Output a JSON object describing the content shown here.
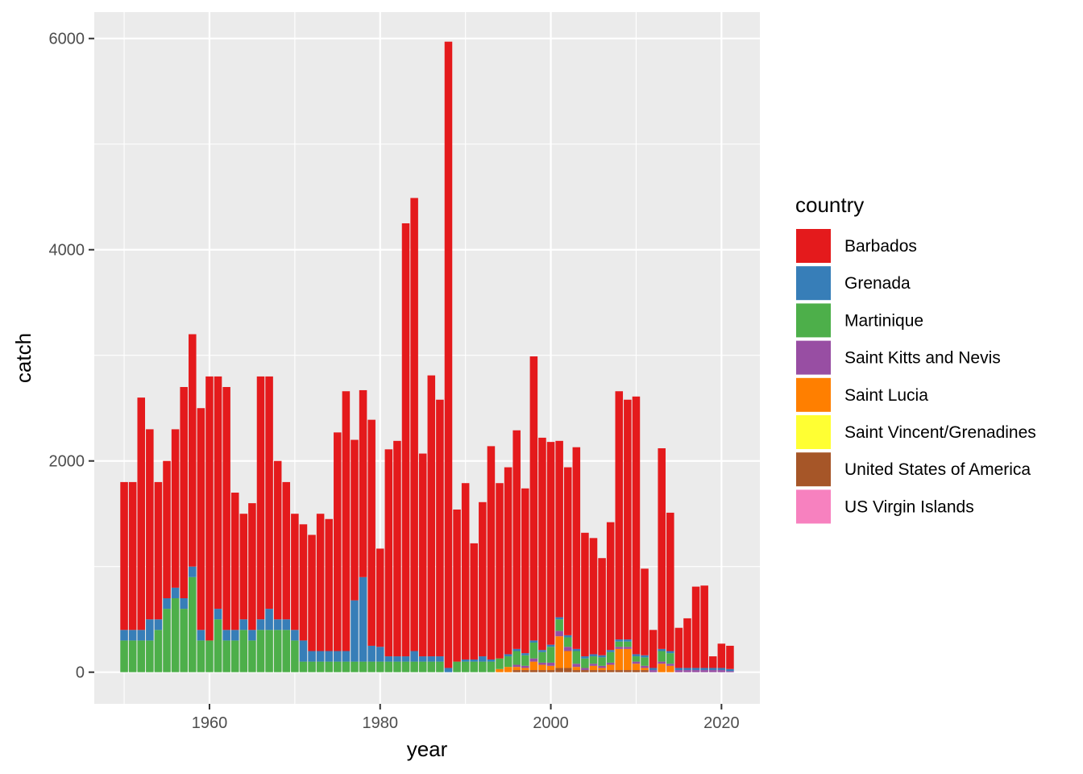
{
  "chart_data": {
    "type": "bar",
    "stacked": true,
    "xlabel": "year",
    "ylabel": "catch",
    "xlim": [
      1946.5,
      2024.5
    ],
    "ylim": [
      -300,
      6250
    ],
    "x_ticks": [
      1960,
      1980,
      2000,
      2020
    ],
    "y_ticks": [
      0,
      2000,
      4000,
      6000
    ],
    "grid": true,
    "legend_title": "country",
    "legend_position": "right",
    "series": [
      {
        "name": "Barbados",
        "color": "#E41A1C"
      },
      {
        "name": "Grenada",
        "color": "#377EB8"
      },
      {
        "name": "Martinique",
        "color": "#4DAF4A"
      },
      {
        "name": "Saint Kitts and Nevis",
        "color": "#984EA3"
      },
      {
        "name": "Saint Lucia",
        "color": "#FF7F00"
      },
      {
        "name": "Saint Vincent/Grenadines",
        "color": "#FFFF33"
      },
      {
        "name": "United States of America",
        "color": "#A65628"
      },
      {
        "name": "US Virgin Islands",
        "color": "#F781BF"
      }
    ],
    "stack_order": [
      "United States of America",
      "Saint Lucia",
      "Saint Kitts and Nevis",
      "Martinique",
      "Grenada",
      "Barbados"
    ],
    "years": [
      1950,
      1951,
      1952,
      1953,
      1954,
      1955,
      1956,
      1957,
      1958,
      1959,
      1960,
      1961,
      1962,
      1963,
      1964,
      1965,
      1966,
      1967,
      1968,
      1969,
      1970,
      1971,
      1972,
      1973,
      1974,
      1975,
      1976,
      1977,
      1978,
      1979,
      1980,
      1981,
      1982,
      1983,
      1984,
      1985,
      1986,
      1987,
      1988,
      1989,
      1990,
      1991,
      1992,
      1993,
      1994,
      1995,
      1996,
      1997,
      1998,
      1999,
      2000,
      2001,
      2002,
      2003,
      2004,
      2005,
      2006,
      2007,
      2008,
      2009,
      2010,
      2011,
      2012,
      2013,
      2014,
      2015,
      2016,
      2017,
      2018,
      2019,
      2020,
      2021
    ],
    "values": {
      "Barbados": [
        1400,
        1400,
        2200,
        1800,
        1300,
        1300,
        1500,
        2000,
        2200,
        2100,
        2500,
        2200,
        2300,
        1300,
        1000,
        1200,
        2300,
        2200,
        1500,
        1300,
        1100,
        1100,
        1100,
        1300,
        1250,
        2070,
        2460,
        1520,
        1770,
        2140,
        930,
        1960,
        2040,
        4100,
        4290,
        1920,
        2660,
        2430,
        5930,
        1440,
        1670,
        1100,
        1460,
        2020,
        1660,
        1770,
        2070,
        1560,
        2690,
        2010,
        1920,
        1670,
        1590,
        1910,
        1170,
        1100,
        920,
        1210,
        2350,
        2270,
        2440,
        820,
        360,
        1900,
        1310,
        380,
        470,
        770,
        780,
        110,
        230,
        220
      ],
      "Grenada": [
        100,
        100,
        100,
        200,
        100,
        100,
        100,
        100,
        100,
        100,
        0,
        100,
        100,
        100,
        100,
        100,
        100,
        200,
        100,
        100,
        100,
        200,
        100,
        100,
        100,
        100,
        100,
        580,
        800,
        150,
        140,
        50,
        50,
        50,
        100,
        50,
        50,
        50,
        40,
        0,
        20,
        20,
        50,
        20,
        0,
        20,
        20,
        20,
        20,
        20,
        20,
        20,
        20,
        20,
        20,
        20,
        20,
        20,
        20,
        20,
        20,
        20,
        20,
        20,
        20,
        20,
        20,
        20,
        20,
        20,
        20,
        20
      ],
      "Martinique": [
        300,
        300,
        300,
        300,
        400,
        600,
        700,
        600,
        900,
        300,
        300,
        500,
        300,
        300,
        400,
        300,
        400,
        400,
        400,
        400,
        300,
        100,
        100,
        100,
        100,
        100,
        100,
        100,
        100,
        100,
        100,
        100,
        100,
        100,
        100,
        100,
        100,
        100,
        0,
        100,
        100,
        100,
        100,
        100,
        100,
        100,
        130,
        100,
        150,
        100,
        150,
        110,
        90,
        120,
        90,
        70,
        80,
        100,
        50,
        50,
        50,
        80,
        0,
        100,
        100,
        0,
        0,
        0,
        0,
        0,
        0,
        0
      ],
      "Saint Kitts and Nevis": [
        0,
        0,
        0,
        0,
        0,
        0,
        0,
        0,
        0,
        0,
        0,
        0,
        0,
        0,
        0,
        0,
        0,
        0,
        0,
        0,
        0,
        0,
        0,
        0,
        0,
        0,
        0,
        0,
        0,
        0,
        0,
        0,
        0,
        0,
        0,
        0,
        0,
        0,
        0,
        0,
        0,
        0,
        0,
        0,
        0,
        0,
        20,
        20,
        30,
        20,
        30,
        50,
        40,
        30,
        20,
        20,
        20,
        20,
        20,
        20,
        20,
        20,
        20,
        20,
        20,
        20,
        20,
        20,
        20,
        20,
        20,
        10
      ],
      "Saint Lucia": [
        0,
        0,
        0,
        0,
        0,
        0,
        0,
        0,
        0,
        0,
        0,
        0,
        0,
        0,
        0,
        0,
        0,
        0,
        0,
        0,
        0,
        0,
        0,
        0,
        0,
        0,
        0,
        0,
        0,
        0,
        0,
        0,
        0,
        0,
        0,
        0,
        0,
        0,
        0,
        0,
        0,
        0,
        0,
        0,
        30,
        50,
        30,
        20,
        80,
        50,
        40,
        300,
        160,
        30,
        0,
        40,
        20,
        50,
        200,
        200,
        60,
        20,
        0,
        80,
        60,
        0,
        0,
        0,
        0,
        0,
        0,
        0
      ],
      "United States of America": [
        0,
        0,
        0,
        0,
        0,
        0,
        0,
        0,
        0,
        0,
        0,
        0,
        0,
        0,
        0,
        0,
        0,
        0,
        0,
        0,
        0,
        0,
        0,
        0,
        0,
        0,
        0,
        0,
        0,
        0,
        0,
        0,
        0,
        0,
        0,
        0,
        0,
        0,
        0,
        0,
        0,
        0,
        0,
        0,
        0,
        0,
        20,
        20,
        20,
        20,
        20,
        40,
        40,
        20,
        20,
        20,
        20,
        20,
        20,
        20,
        20,
        20,
        0,
        0,
        0,
        0,
        0,
        0,
        0,
        0,
        0,
        0
      ]
    }
  }
}
